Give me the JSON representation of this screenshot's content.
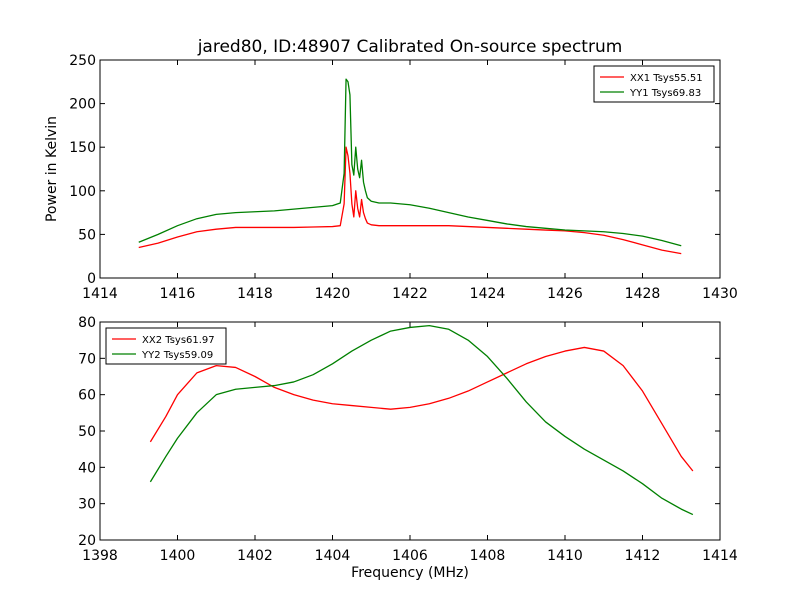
{
  "figure": {
    "title": "jared80, ID:48907 Calibrated On-source spectrum"
  },
  "chart_data": [
    {
      "type": "line",
      "ylabel": "Power in Kelvin",
      "xlabel": "",
      "xlim": [
        1414,
        1430
      ],
      "ylim": [
        0,
        250
      ],
      "xticks": [
        1414,
        1416,
        1418,
        1420,
        1422,
        1424,
        1426,
        1428,
        1430
      ],
      "yticks": [
        0,
        50,
        100,
        150,
        200,
        250
      ],
      "legend_position": "top-right",
      "grid": false,
      "series": [
        {
          "name": "XX1 Tsys55.51",
          "color": "#ff0000",
          "x": [
            1415.0,
            1415.5,
            1416.0,
            1416.5,
            1417.0,
            1417.5,
            1418.0,
            1418.5,
            1419.0,
            1419.5,
            1420.0,
            1420.2,
            1420.3,
            1420.35,
            1420.4,
            1420.45,
            1420.5,
            1420.55,
            1420.6,
            1420.65,
            1420.7,
            1420.75,
            1420.8,
            1420.85,
            1420.9,
            1421.0,
            1421.2,
            1421.5,
            1422.0,
            1422.5,
            1423.0,
            1423.5,
            1424.0,
            1424.5,
            1425.0,
            1425.5,
            1426.0,
            1426.5,
            1427.0,
            1427.5,
            1428.0,
            1428.5,
            1429.0
          ],
          "y": [
            35,
            40,
            47,
            53,
            56,
            58,
            58,
            58,
            58,
            58.5,
            59,
            60,
            85,
            150,
            140,
            120,
            85,
            70,
            100,
            80,
            70,
            90,
            75,
            68,
            63,
            61,
            60,
            60,
            60,
            60,
            60,
            59,
            58,
            57,
            56,
            55,
            54,
            52,
            49,
            44,
            38,
            32,
            28
          ]
        },
        {
          "name": "YY1 Tsys69.83",
          "color": "#008000",
          "x": [
            1415.0,
            1415.5,
            1416.0,
            1416.5,
            1417.0,
            1417.5,
            1418.0,
            1418.5,
            1419.0,
            1419.5,
            1420.0,
            1420.2,
            1420.3,
            1420.35,
            1420.4,
            1420.45,
            1420.5,
            1420.55,
            1420.6,
            1420.65,
            1420.7,
            1420.75,
            1420.8,
            1420.85,
            1420.9,
            1421.0,
            1421.2,
            1421.5,
            1422.0,
            1422.5,
            1423.0,
            1423.5,
            1424.0,
            1424.5,
            1425.0,
            1425.5,
            1426.0,
            1426.5,
            1427.0,
            1427.5,
            1428.0,
            1428.5,
            1429.0
          ],
          "y": [
            41,
            50,
            60,
            68,
            73,
            75,
            76,
            77,
            79,
            81,
            83,
            86,
            120,
            228,
            225,
            210,
            130,
            118,
            150,
            125,
            115,
            135,
            110,
            100,
            92,
            88,
            86,
            86,
            84,
            80,
            75,
            70,
            66,
            62,
            59,
            57,
            55,
            54,
            53,
            51,
            48,
            43,
            37
          ]
        }
      ]
    },
    {
      "type": "line",
      "ylabel": "",
      "xlabel": "Frequency (MHz)",
      "xlim": [
        1398,
        1414
      ],
      "ylim": [
        20,
        80
      ],
      "xticks": [
        1398,
        1400,
        1402,
        1404,
        1406,
        1408,
        1410,
        1412,
        1414
      ],
      "yticks": [
        20,
        30,
        40,
        50,
        60,
        70,
        80
      ],
      "legend_position": "top-left",
      "grid": false,
      "series": [
        {
          "name": "XX2 Tsys61.97",
          "color": "#ff0000",
          "x": [
            1399.3,
            1399.7,
            1400.0,
            1400.5,
            1401.0,
            1401.5,
            1402.0,
            1402.5,
            1403.0,
            1403.5,
            1404.0,
            1404.5,
            1405.0,
            1405.5,
            1406.0,
            1406.5,
            1407.0,
            1407.5,
            1408.0,
            1408.5,
            1409.0,
            1409.5,
            1410.0,
            1410.5,
            1411.0,
            1411.5,
            1412.0,
            1412.5,
            1413.0,
            1413.3
          ],
          "y": [
            47,
            54,
            60,
            66,
            68,
            67.5,
            65,
            62,
            60,
            58.5,
            57.5,
            57,
            56.5,
            56,
            56.5,
            57.5,
            59,
            61,
            63.5,
            66,
            68.5,
            70.5,
            72,
            73,
            72,
            68,
            61,
            52,
            43,
            39
          ]
        },
        {
          "name": "YY2 Tsys59.09",
          "color": "#008000",
          "x": [
            1399.3,
            1399.7,
            1400.0,
            1400.5,
            1401.0,
            1401.5,
            1402.0,
            1402.5,
            1403.0,
            1403.5,
            1404.0,
            1404.5,
            1405.0,
            1405.5,
            1406.0,
            1406.5,
            1407.0,
            1407.5,
            1408.0,
            1408.5,
            1409.0,
            1409.5,
            1410.0,
            1410.5,
            1411.0,
            1411.5,
            1412.0,
            1412.5,
            1413.0,
            1413.3
          ],
          "y": [
            36,
            43,
            48,
            55,
            60,
            61.5,
            62,
            62.5,
            63.5,
            65.5,
            68.5,
            72,
            75,
            77.5,
            78.5,
            79,
            78,
            75,
            70.5,
            64.5,
            58,
            52.5,
            48.5,
            45,
            42,
            39,
            35.5,
            31.5,
            28.5,
            27
          ]
        }
      ]
    }
  ]
}
